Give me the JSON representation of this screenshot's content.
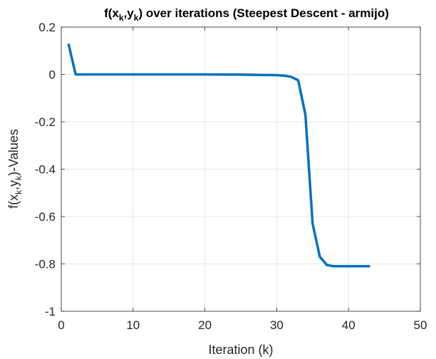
{
  "chart_data": {
    "type": "line",
    "title": {
      "prefix": "f(x",
      "sub1": "k",
      "mid": ",y",
      "sub2": "k",
      "suffix": ") over iterations (Steepest Descent - armijo)"
    },
    "xlabel": "Iteration (k)",
    "ylabel": {
      "prefix": "f(x",
      "sub1": "k",
      "mid": ",y",
      "sub2": "k",
      "suffix": ")-Values"
    },
    "xlim": [
      0,
      50
    ],
    "ylim": [
      -1,
      0.2
    ],
    "xticks": [
      0,
      10,
      20,
      30,
      40,
      50
    ],
    "xtick_labels": [
      "0",
      "10",
      "20",
      "30",
      "40",
      "50"
    ],
    "yticks": [
      0.2,
      0,
      -0.2,
      -0.4,
      -0.6,
      -0.8,
      -1
    ],
    "ytick_labels": [
      "0.2",
      "0",
      "-0.2",
      "-0.4",
      "-0.6",
      "-0.8",
      "-1"
    ],
    "grid": true,
    "line_color": "#0072BD",
    "series": [
      {
        "x": [
          1,
          2,
          5,
          10,
          15,
          20,
          25,
          28,
          30,
          31,
          32,
          33,
          34,
          35,
          36,
          37,
          38,
          39,
          40,
          41,
          42,
          43
        ],
        "values": [
          0.13,
          0.0,
          0.0,
          0.0,
          0.0,
          0.0,
          -0.001,
          -0.002,
          -0.003,
          -0.005,
          -0.01,
          -0.025,
          -0.17,
          -0.63,
          -0.77,
          -0.805,
          -0.81,
          -0.81,
          -0.81,
          -0.81,
          -0.81,
          -0.81
        ]
      }
    ]
  }
}
